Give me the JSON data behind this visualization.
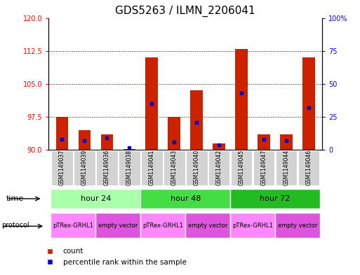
{
  "title": "GDS5263 / ILMN_2206041",
  "samples": [
    "GSM1149037",
    "GSM1149039",
    "GSM1149036",
    "GSM1149038",
    "GSM1149041",
    "GSM1149043",
    "GSM1149040",
    "GSM1149042",
    "GSM1149045",
    "GSM1149047",
    "GSM1149044",
    "GSM1149046"
  ],
  "count_values": [
    97.5,
    94.5,
    93.5,
    90.2,
    111.0,
    97.5,
    103.5,
    91.5,
    113.0,
    93.5,
    93.5,
    111.0
  ],
  "percentile_values": [
    8.0,
    7.0,
    9.0,
    1.5,
    35.0,
    6.0,
    21.0,
    4.0,
    43.0,
    8.0,
    7.0,
    32.0
  ],
  "ylim_left": [
    90,
    120
  ],
  "ylim_right": [
    0,
    100
  ],
  "yticks_left": [
    90,
    97.5,
    105,
    112.5,
    120
  ],
  "yticks_right": [
    0,
    25,
    50,
    75,
    100
  ],
  "ytick_labels_right": [
    "0",
    "25",
    "50",
    "75",
    "100%"
  ],
  "time_groups": [
    {
      "label": "hour 24",
      "start": 0,
      "end": 4,
      "color": "#aaffaa"
    },
    {
      "label": "hour 48",
      "start": 4,
      "end": 8,
      "color": "#44dd44"
    },
    {
      "label": "hour 72",
      "start": 8,
      "end": 12,
      "color": "#22bb22"
    }
  ],
  "protocol_groups": [
    {
      "label": "pTRex-GRHL1",
      "start": 0,
      "end": 2,
      "color": "#ff88ff"
    },
    {
      "label": "empty vector",
      "start": 2,
      "end": 4,
      "color": "#dd55dd"
    },
    {
      "label": "pTRex-GRHL1",
      "start": 4,
      "end": 6,
      "color": "#ff88ff"
    },
    {
      "label": "empty vector",
      "start": 6,
      "end": 8,
      "color": "#dd55dd"
    },
    {
      "label": "pTRex-GRHL1",
      "start": 8,
      "end": 10,
      "color": "#ff88ff"
    },
    {
      "label": "empty vector",
      "start": 10,
      "end": 12,
      "color": "#dd55dd"
    }
  ],
  "bar_color": "#cc2200",
  "percentile_color": "#0000cc",
  "bar_width": 0.55,
  "background_color": "#ffffff",
  "title_fontsize": 11,
  "tick_fontsize": 7,
  "label_fontsize": 8,
  "legend_fontsize": 7.5,
  "sample_label_fontsize": 5.5,
  "protocol_fontsize": 6,
  "time_fontsize": 8
}
